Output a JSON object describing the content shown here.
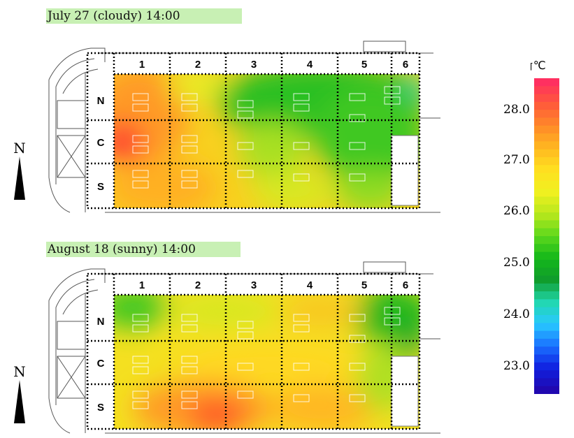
{
  "panels": [
    {
      "title": "July 27 (cloudy)   14:00",
      "columns": [
        "1",
        "2",
        "3",
        "4",
        "5",
        "6"
      ],
      "rows": [
        "N",
        "C",
        "S"
      ],
      "north_label": "N"
    },
    {
      "title": "August 18 (sunny)   14:00",
      "columns": [
        "1",
        "2",
        "3",
        "4",
        "5",
        "6"
      ],
      "rows": [
        "N",
        "C",
        "S"
      ],
      "north_label": "N"
    }
  ],
  "colorbar": {
    "unit": "℃",
    "ticks": [
      "28.0",
      "27.0",
      "26.0",
      "25.0",
      "24.0",
      "23.0"
    ],
    "range": [
      22.4,
      28.6
    ],
    "colors": [
      "#ff3060",
      "#ff5a3a",
      "#ff8a28",
      "#ffb820",
      "#ffe020",
      "#f0f020",
      "#b8e81c",
      "#5cd81c",
      "#14b81a",
      "#109c2c",
      "#22d8b0",
      "#28c8ff",
      "#1a70ff",
      "#1020e0",
      "#2008b0"
    ]
  },
  "icons": {
    "north_arrow": "north-arrow-icon"
  }
}
